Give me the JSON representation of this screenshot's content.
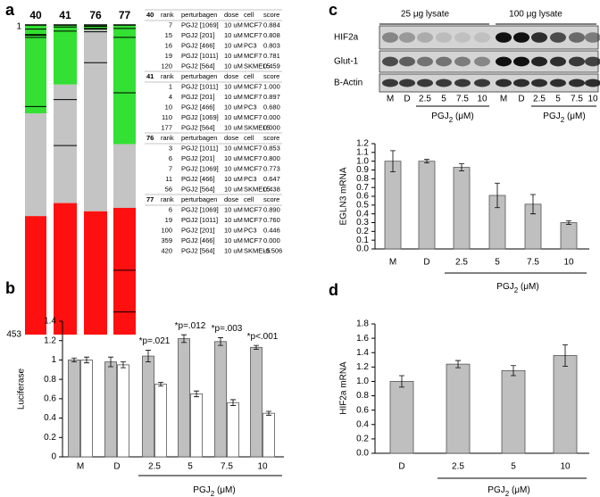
{
  "panels": {
    "a": "a",
    "b": "b",
    "c": "c",
    "d": "d"
  },
  "barcode": {
    "ylim": [
      1,
      453
    ],
    "colors": {
      "top": "#33e033",
      "middle": "#c4c4c4",
      "bottom": "#ff1010"
    },
    "columns": [
      {
        "label": "40",
        "green_end": 130,
        "red_start": 280
      },
      {
        "label": "41",
        "green_end": 88,
        "red_start": 261
      },
      {
        "label": "76",
        "green_end": 8,
        "red_start": 273
      },
      {
        "label": "77",
        "green_end": 175,
        "red_start": 268
      }
    ]
  },
  "table": {
    "sections": [
      {
        "id": "40",
        "header": [
          "rank",
          "perturbagen",
          "dose",
          "cell",
          "score"
        ],
        "rows": [
          [
            "7",
            "PGJ2 [1069]",
            "10 uM",
            "MCF7",
            "0.884"
          ],
          [
            "15",
            "PGJ2 [201]",
            "10 uM",
            "MCF7",
            "0.808"
          ],
          [
            "16",
            "PGJ2 [466]",
            "10 uM",
            "PC3",
            "0.803"
          ],
          [
            "19",
            "PGJ2 [1011]",
            "10 uM",
            "MCF7",
            "0.781"
          ],
          [
            "120",
            "PGJ2 [564]",
            "10 uM",
            "SKMEL5",
            "0.459"
          ]
        ]
      },
      {
        "id": "41",
        "header": [
          "rank",
          "perturbagen",
          "dose",
          "cell",
          "score"
        ],
        "rows": [
          [
            "1",
            "PGJ2 [1011]",
            "10 uM",
            "MCF7",
            "1.000"
          ],
          [
            "4",
            "PGJ2 [201]",
            "10 uM",
            "MCF7",
            "0.897"
          ],
          [
            "10",
            "PGJ2 [466]",
            "10 uM",
            "PC3",
            "0.680"
          ],
          [
            "110",
            "PGJ2 [1069]",
            "10 uM",
            "MCF7",
            "0.000"
          ],
          [
            "177",
            "PGJ2 [564]",
            "10 uM",
            "SKMEL5",
            "0.000"
          ]
        ]
      },
      {
        "id": "76",
        "header": [
          "rank",
          "perturbagen",
          "dose",
          "cell",
          "score"
        ],
        "rows": [
          [
            "3",
            "PGJ2 [1011]",
            "10 uM",
            "MCF7",
            "0.853"
          ],
          [
            "6",
            "PGJ2 [201]",
            "10 uM",
            "MCF7",
            "0.800"
          ],
          [
            "7",
            "PGJ2 [1069]",
            "10 uM",
            "MCF7",
            "0.773"
          ],
          [
            "11",
            "PGJ2 [466]",
            "10 uM",
            "PC3",
            "0.647"
          ],
          [
            "56",
            "PGJ2 [564]",
            "10 uM",
            "SKMEL5",
            "0.438"
          ]
        ]
      },
      {
        "id": "77",
        "header": [
          "rank",
          "perturbagen",
          "dose",
          "cell",
          "score"
        ],
        "rows": [
          [
            "6",
            "PGJ2 [1069]",
            "10 uM",
            "MCF7",
            "0.890"
          ],
          [
            "19",
            "PGJ2 [1011]",
            "10 uM",
            "MCF7",
            "0.760"
          ],
          [
            "100",
            "PGJ2 [201]",
            "10 uM",
            "PC3",
            "0.446"
          ],
          [
            "359",
            "PGJ2 [466]",
            "10 uM",
            "MCF7",
            "0.000"
          ],
          [
            "420",
            "PGJ2 [564]",
            "10 uM",
            "SKMEL5",
            "-0.506"
          ]
        ]
      }
    ]
  },
  "blot": {
    "headers": [
      "25 μg lysate",
      "100 μg lysate"
    ],
    "rows": [
      "HIF2a",
      "Glut-1",
      "B-Actin"
    ],
    "lanes": [
      "M",
      "D",
      "2.5",
      "5",
      "7.5",
      "10",
      "M",
      "D",
      "2.5",
      "5",
      "7.5",
      "10"
    ],
    "xlabels": [
      [
        "PGJ",
        "2",
        " (μM)"
      ],
      [
        "PGJ",
        "2",
        " (μM)"
      ]
    ]
  },
  "chart_data": [
    {
      "type": "bar",
      "ylabel": "Luciferase",
      "xlabel": [
        "PGJ",
        "2",
        " (μM)"
      ],
      "categories": [
        "M",
        "D",
        "2.5",
        "5",
        "7.5",
        "10"
      ],
      "series": [
        {
          "color": "#bfbfbf",
          "values": [
            1.0,
            0.98,
            1.04,
            1.22,
            1.19,
            1.13
          ],
          "errors": [
            0.02,
            0.05,
            0.06,
            0.04,
            0.04,
            0.02
          ]
        },
        {
          "color": "#ffffff",
          "values": [
            1.0,
            0.95,
            0.75,
            0.65,
            0.56,
            0.45
          ],
          "errors": [
            0.03,
            0.03,
            0.02,
            0.03,
            0.03,
            0.02
          ]
        }
      ],
      "annotations": [
        {
          "x": "2.5",
          "text": "*p=.021"
        },
        {
          "x": "5",
          "text": "*p=.012"
        },
        {
          "x": "7.5",
          "text": "*p=.003"
        },
        {
          "x": "10",
          "text": "*p<.001"
        }
      ],
      "ylim": [
        0,
        1.4
      ],
      "yticks": [
        0,
        0.2,
        0.4,
        0.6,
        0.8,
        1,
        1.2,
        1.4
      ]
    },
    {
      "type": "bar",
      "ylabel": "EGLN3 mRNA",
      "xlabel": [
        "PGJ",
        "2",
        " (μM)"
      ],
      "categories": [
        "M",
        "D",
        "2.5",
        "5",
        "7.5",
        "10"
      ],
      "series": [
        {
          "color": "#bfbfbf",
          "values": [
            1.0,
            1.0,
            0.93,
            0.61,
            0.51,
            0.3
          ],
          "errors": [
            0.12,
            0.02,
            0.04,
            0.14,
            0.11,
            0.02
          ]
        }
      ],
      "ylim": [
        0,
        1.2
      ],
      "yticks": [
        {
          "value": 0,
          "label": "0.0"
        },
        0.1,
        0.2,
        0.3,
        0.4,
        0.5,
        0.6,
        0.7,
        0.8,
        0.9,
        {
          "value": 1,
          "label": "1.0"
        },
        1.1,
        1.2
      ]
    },
    {
      "type": "bar",
      "ylabel": "HIF2a mRNA",
      "xlabel": [
        "PGJ",
        "2",
        " (μM)"
      ],
      "categories": [
        "D",
        "2.5",
        "5",
        "10"
      ],
      "series": [
        {
          "color": "#bfbfbf",
          "values": [
            1.0,
            1.24,
            1.15,
            1.36
          ],
          "errors": [
            0.08,
            0.05,
            0.07,
            0.15
          ]
        }
      ],
      "ylim": [
        0,
        1.8
      ],
      "yticks": [
        {
          "value": 0,
          "label": "0.0"
        },
        0.2,
        0.4,
        0.6,
        0.8,
        {
          "value": 1,
          "label": "1.0"
        },
        1.2,
        1.4,
        1.6,
        1.8
      ]
    }
  ]
}
